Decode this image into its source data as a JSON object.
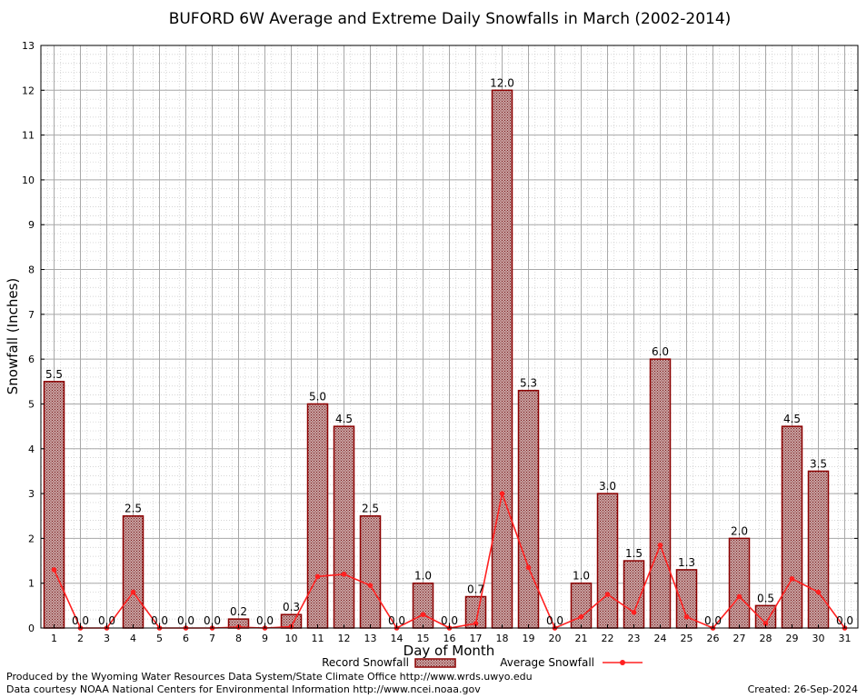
{
  "chart_data": {
    "type": "bar",
    "title": "BUFORD 6W Average and Extreme Daily Snowfalls in March (2002-2014)",
    "xlabel": "Day of Month",
    "ylabel": "Snowfall (Inches)",
    "ylim": [
      0,
      13
    ],
    "yticks": [
      "0",
      "1",
      "2",
      "3",
      "4",
      "5",
      "6",
      "7",
      "8",
      "9",
      "10",
      "11",
      "12",
      "13"
    ],
    "categories": [
      "1",
      "2",
      "3",
      "4",
      "5",
      "6",
      "7",
      "8",
      "9",
      "10",
      "11",
      "12",
      "13",
      "14",
      "15",
      "16",
      "17",
      "18",
      "19",
      "20",
      "21",
      "22",
      "23",
      "24",
      "25",
      "26",
      "27",
      "28",
      "29",
      "30",
      "31"
    ],
    "series": [
      {
        "name": "Record Snowfall",
        "kind": "bar",
        "color": "#8b0000",
        "values": [
          5.5,
          0.0,
          0.0,
          2.5,
          0.0,
          0.0,
          0.0,
          0.2,
          0.0,
          0.3,
          5.0,
          4.5,
          2.5,
          0.0,
          1.0,
          0.0,
          0.7,
          12.0,
          5.3,
          0.0,
          1.0,
          3.0,
          1.5,
          6.0,
          1.3,
          0.0,
          2.0,
          0.5,
          4.5,
          3.5,
          0.0
        ],
        "labels": [
          "5.5",
          "0.0",
          "0.0",
          "2.5",
          "0.0",
          "0.0",
          "0.0",
          "0.2",
          "0.0",
          "0.3",
          "5.0",
          "4.5",
          "2.5",
          "0.0",
          "1.0",
          "0.0",
          "0.7",
          "12.0",
          "5.3",
          "0.0",
          "1.0",
          "3.0",
          "1.5",
          "6.0",
          "1.3",
          "0.0",
          "2.0",
          "0.5",
          "4.5",
          "3.5",
          "0.0"
        ]
      },
      {
        "name": "Average Snowfall",
        "kind": "line",
        "color": "#ff2020",
        "values": [
          1.3,
          0.0,
          0.0,
          0.8,
          0.0,
          0.0,
          0.0,
          0.02,
          0.0,
          0.03,
          1.15,
          1.2,
          0.95,
          0.0,
          0.3,
          0.0,
          0.1,
          3.0,
          1.35,
          0.0,
          0.25,
          0.75,
          0.35,
          1.85,
          0.25,
          0.0,
          0.7,
          0.1,
          1.1,
          0.8,
          0.0
        ]
      }
    ],
    "grid": true,
    "legend": "bottom-center",
    "background": "#ffffff"
  },
  "footer": {
    "produced_by": "Produced by the Wyoming Water Resources Data System/State Climate Office http://www.wrds.uwyo.edu",
    "data_courtesy": "Data courtesy NOAA National Centers for Environmental Information http://www.ncei.noaa.gov",
    "created": "Created:  26-Sep-2024"
  }
}
